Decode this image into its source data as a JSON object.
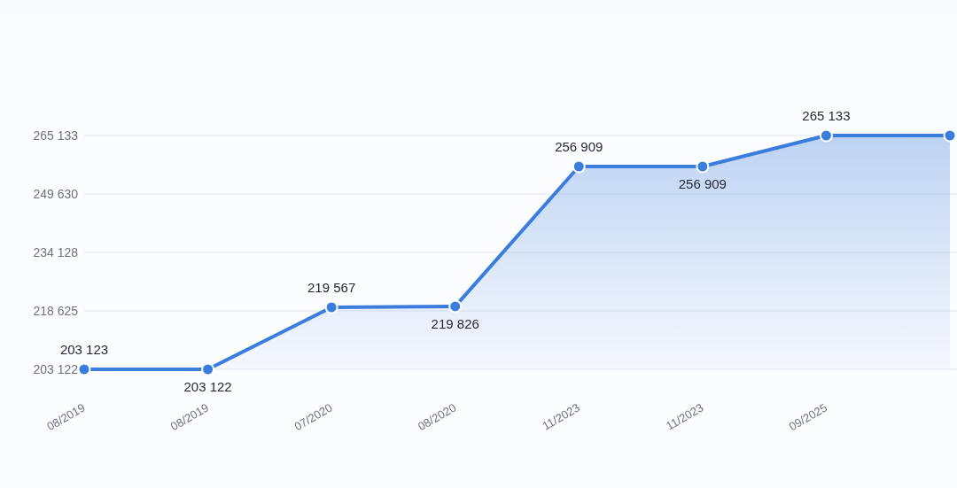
{
  "chart_data": {
    "type": "area",
    "categories": [
      "08/2019",
      "08/2019",
      "07/2020",
      "08/2020",
      "11/2023",
      "11/2023",
      "09/2025",
      null
    ],
    "series": [
      {
        "color": "#3b7ddd",
        "values": [
          203123,
          203122,
          219567,
          219826,
          256909,
          256909,
          265133,
          265133
        ],
        "value_labels": [
          "203 123",
          "203 122",
          "219 567",
          "219 826",
          "256 909",
          "256 909",
          "265 133",
          null
        ]
      }
    ],
    "ylim": [
      203122,
      265133
    ],
    "yticks": [
      {
        "value": 203122,
        "label": "203 122"
      },
      {
        "value": 218625,
        "label": "218 625"
      },
      {
        "value": 234128,
        "label": "234 128"
      },
      {
        "value": 249630,
        "label": "249 630"
      },
      {
        "value": 265133,
        "label": "265 133"
      }
    ],
    "grid": "y",
    "marker": "circle"
  }
}
